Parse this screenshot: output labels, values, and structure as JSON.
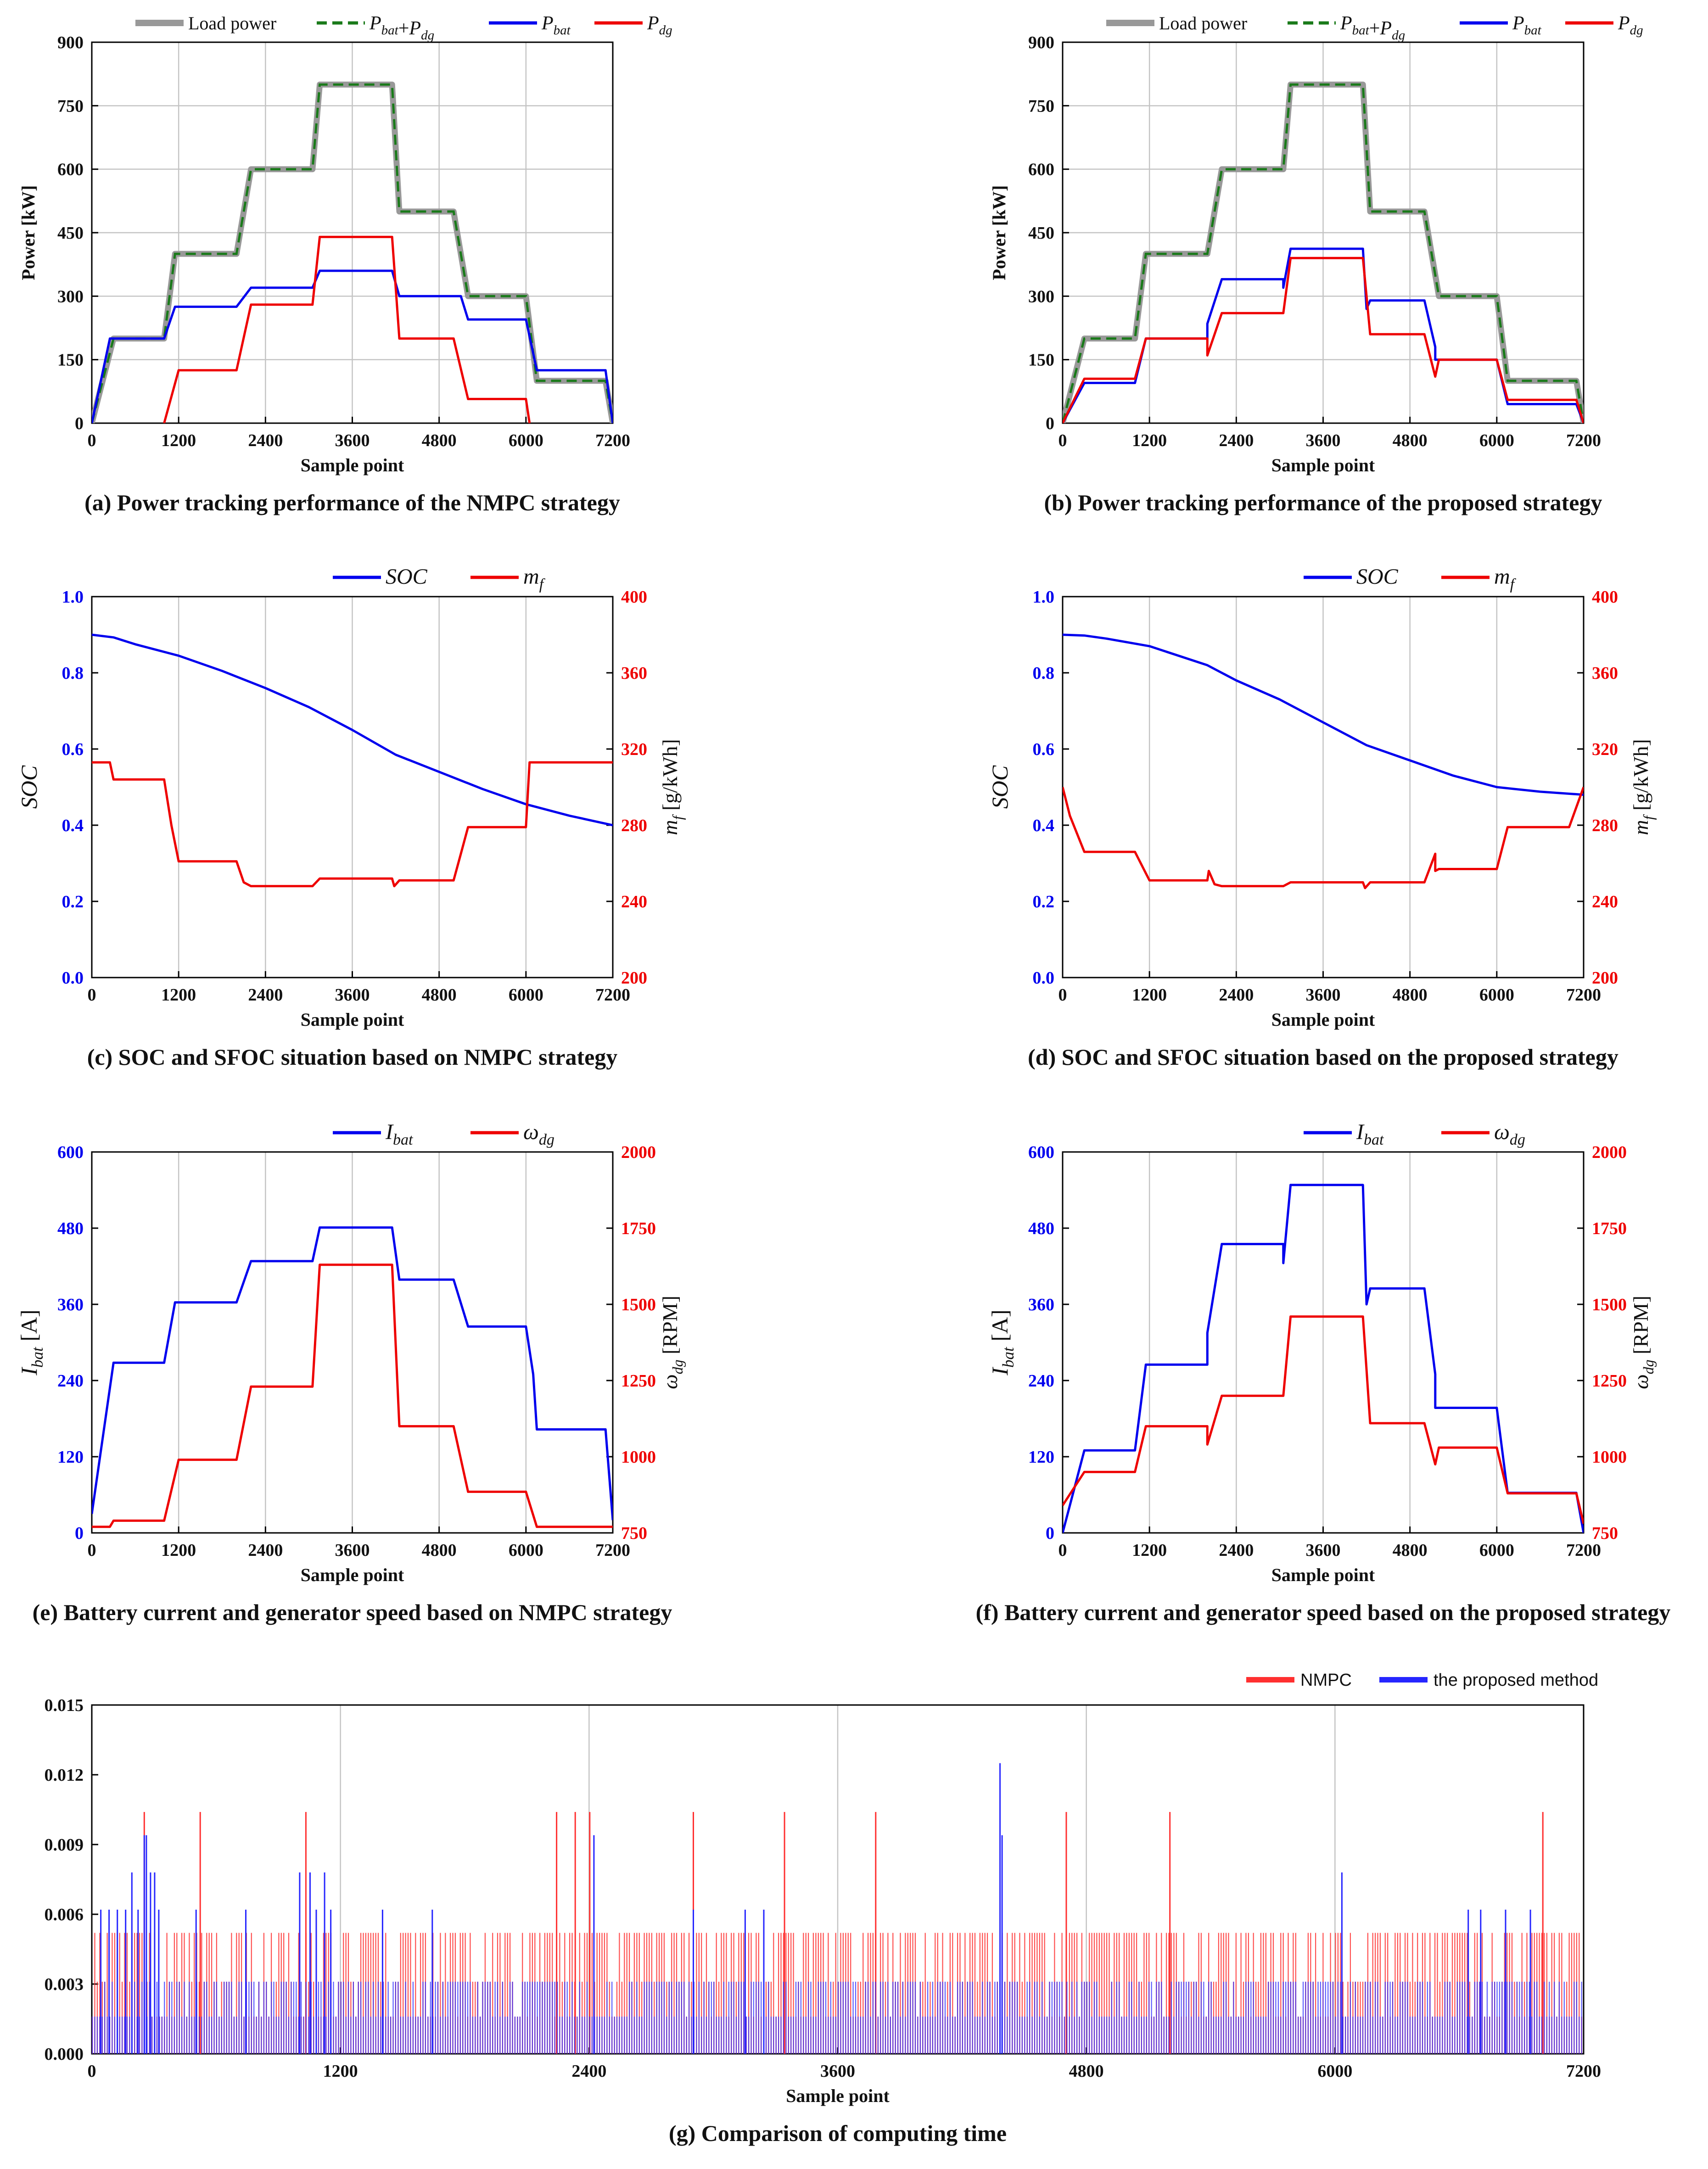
{
  "colors": {
    "load": "#999999",
    "sum": "#1a7a1a",
    "bat": "#0000ee",
    "dg": "#ee0000",
    "nmpc_bar": "#ff3030",
    "proposed_bar": "#2626ff",
    "grid": "#c4c4c4",
    "axis": "#000000"
  },
  "chart_data": [
    {
      "id": "a",
      "type": "line",
      "caption": "(a) Power tracking performance of the NMPC strategy",
      "xlabel": "Sample point",
      "ylabel": "Power [kW]",
      "xlim": [
        0,
        7200
      ],
      "ylim": [
        0,
        900
      ],
      "xticks": [
        "0",
        "1200",
        "2400",
        "3600",
        "4800",
        "6000",
        "7200"
      ],
      "yticks": [
        "0",
        "150",
        "300",
        "450",
        "600",
        "750",
        "900"
      ],
      "legend": [
        "Load power",
        "P_bat+P_dg",
        "P_bat",
        "P_dg"
      ],
      "series": [
        {
          "name": "Load power",
          "color": "load",
          "style": "solid-thick",
          "x": [
            0,
            300,
            1000,
            1150,
            2000,
            2200,
            3050,
            3150,
            4150,
            4250,
            5000,
            5200,
            6000,
            6150,
            7100,
            7200
          ],
          "y": [
            0,
            200,
            200,
            400,
            400,
            600,
            600,
            800,
            800,
            500,
            500,
            300,
            300,
            100,
            100,
            0
          ]
        },
        {
          "name": "P_bat+P_dg",
          "color": "sum",
          "style": "dashed",
          "x": [
            0,
            300,
            1000,
            1150,
            2000,
            2200,
            3050,
            3150,
            4150,
            4250,
            5000,
            5200,
            6000,
            6150,
            7100,
            7200
          ],
          "y": [
            0,
            200,
            200,
            400,
            400,
            600,
            600,
            800,
            800,
            500,
            500,
            300,
            300,
            100,
            100,
            0
          ]
        },
        {
          "name": "P_bat",
          "color": "bat",
          "style": "solid",
          "x": [
            0,
            250,
            1000,
            1150,
            2000,
            2200,
            3050,
            3150,
            4150,
            4250,
            5100,
            5200,
            6000,
            6150,
            7100,
            7200
          ],
          "y": [
            0,
            200,
            200,
            275,
            275,
            320,
            320,
            360,
            360,
            300,
            300,
            245,
            245,
            125,
            125,
            0
          ]
        },
        {
          "name": "P_dg",
          "color": "dg",
          "style": "solid",
          "x": [
            1000,
            1200,
            2000,
            2200,
            3050,
            3150,
            4150,
            4250,
            5000,
            5200,
            6000,
            6050
          ],
          "y": [
            0,
            125,
            125,
            280,
            280,
            440,
            440,
            200,
            200,
            57,
            57,
            0
          ]
        }
      ]
    },
    {
      "id": "b",
      "type": "line",
      "caption": "(b) Power tracking performance of the proposed strategy",
      "xlabel": "Sample point",
      "ylabel": "Power [kW]",
      "xlim": [
        0,
        7200
      ],
      "ylim": [
        0,
        900
      ],
      "xticks": [
        "0",
        "1200",
        "2400",
        "3600",
        "4800",
        "6000",
        "7200"
      ],
      "yticks": [
        "0",
        "150",
        "300",
        "450",
        "600",
        "750",
        "900"
      ],
      "legend": [
        "Load power",
        "P_bat+P_dg",
        "P_bat",
        "P_dg"
      ],
      "series": [
        {
          "name": "Load power",
          "color": "load",
          "style": "solid-thick",
          "x": [
            0,
            300,
            1000,
            1150,
            2000,
            2200,
            3050,
            3150,
            4150,
            4250,
            5000,
            5200,
            6000,
            6150,
            7100,
            7200
          ],
          "y": [
            0,
            200,
            200,
            400,
            400,
            600,
            600,
            800,
            800,
            500,
            500,
            300,
            300,
            100,
            100,
            0
          ]
        },
        {
          "name": "P_bat+P_dg",
          "color": "sum",
          "style": "dashed",
          "x": [
            0,
            300,
            1000,
            1150,
            2000,
            2200,
            3050,
            3150,
            4150,
            4250,
            5000,
            5200,
            6000,
            6150,
            7100,
            7200
          ],
          "y": [
            0,
            200,
            200,
            400,
            400,
            600,
            600,
            800,
            800,
            500,
            500,
            300,
            300,
            100,
            100,
            0
          ]
        },
        {
          "name": "P_bat",
          "color": "bat",
          "style": "solid",
          "x": [
            0,
            300,
            1000,
            1150,
            2000,
            2000,
            2200,
            3050,
            3050,
            3150,
            4150,
            4200,
            4250,
            5000,
            5150,
            5150,
            6000,
            6150,
            7100,
            7200
          ],
          "y": [
            0,
            95,
            95,
            200,
            200,
            235,
            340,
            340,
            320,
            412,
            412,
            270,
            290,
            290,
            180,
            150,
            150,
            45,
            45,
            0
          ]
        },
        {
          "name": "P_dg",
          "color": "dg",
          "style": "solid",
          "x": [
            0,
            300,
            1000,
            1150,
            2000,
            2000,
            2200,
            3050,
            3150,
            4150,
            4250,
            5000,
            5150,
            5200,
            6000,
            6150,
            7100,
            7200
          ],
          "y": [
            0,
            105,
            105,
            200,
            200,
            160,
            260,
            260,
            390,
            390,
            210,
            210,
            110,
            150,
            150,
            55,
            55,
            0
          ]
        }
      ]
    },
    {
      "id": "c",
      "type": "line",
      "caption": "(c) SOC and SFOC situation based on NMPC strategy",
      "xlabel": "Sample point",
      "ylabel_left": "SOC",
      "ylabel_right": "m_f [g/kWh]",
      "xlim": [
        0,
        7200
      ],
      "ylim_left": [
        0.0,
        1.0
      ],
      "ylim_right": [
        200,
        400
      ],
      "xticks": [
        "0",
        "1200",
        "2400",
        "3600",
        "4800",
        "6000",
        "7200"
      ],
      "yticks_left": [
        "0.0",
        "0.2",
        "0.4",
        "0.6",
        "0.8",
        "1.0"
      ],
      "yticks_right": [
        "200",
        "240",
        "280",
        "320",
        "360",
        "400"
      ],
      "legend": [
        "SOC",
        "m_f"
      ],
      "series": [
        {
          "name": "SOC",
          "axis": "left",
          "color": "bat",
          "x": [
            0,
            300,
            600,
            1200,
            1800,
            2400,
            3000,
            3600,
            4200,
            4800,
            5400,
            6000,
            6600,
            7200
          ],
          "y": [
            0.9,
            0.893,
            0.875,
            0.845,
            0.805,
            0.76,
            0.71,
            0.65,
            0.585,
            0.54,
            0.495,
            0.455,
            0.425,
            0.4
          ]
        },
        {
          "name": "m_f",
          "axis": "right",
          "color": "dg",
          "x": [
            0,
            250,
            300,
            1000,
            1100,
            1200,
            2000,
            2100,
            2200,
            3050,
            3150,
            4150,
            4180,
            4250,
            5000,
            5100,
            5200,
            6000,
            6050,
            7200
          ],
          "y": [
            313,
            313,
            304,
            304,
            280,
            261,
            261,
            250,
            248,
            248,
            252,
            252,
            248,
            251,
            251,
            265,
            279,
            279,
            313,
            313
          ]
        }
      ]
    },
    {
      "id": "d",
      "type": "line",
      "caption": "(d) SOC and SFOC situation based on the proposed strategy",
      "xlabel": "Sample point",
      "ylabel_left": "SOC",
      "ylabel_right": "m_f [g/kWh]",
      "xlim": [
        0,
        7200
      ],
      "ylim_left": [
        0.0,
        1.0
      ],
      "ylim_right": [
        200,
        400
      ],
      "xticks": [
        "0",
        "1200",
        "2400",
        "3600",
        "4800",
        "6000",
        "7200"
      ],
      "yticks_left": [
        "0.0",
        "0.2",
        "0.4",
        "0.6",
        "0.8",
        "1.0"
      ],
      "yticks_right": [
        "200",
        "240",
        "280",
        "320",
        "360",
        "400"
      ],
      "legend": [
        "SOC",
        "m_f"
      ],
      "series": [
        {
          "name": "SOC",
          "axis": "left",
          "color": "bat",
          "x": [
            0,
            300,
            600,
            1200,
            2000,
            2400,
            3000,
            3600,
            4200,
            4800,
            5400,
            6000,
            6600,
            7200
          ],
          "y": [
            0.9,
            0.898,
            0.89,
            0.87,
            0.82,
            0.78,
            0.73,
            0.67,
            0.61,
            0.57,
            0.53,
            0.5,
            0.488,
            0.48
          ]
        },
        {
          "name": "m_f",
          "axis": "right",
          "color": "dg",
          "x": [
            0,
            100,
            300,
            1000,
            1200,
            2000,
            2020,
            2100,
            2200,
            3050,
            3150,
            4150,
            4180,
            4250,
            5000,
            5150,
            5150,
            5200,
            6000,
            6150,
            7000,
            7200
          ],
          "y": [
            300,
            285,
            266,
            266,
            251,
            251,
            256,
            249,
            248,
            248,
            250,
            250,
            247,
            250,
            250,
            265,
            256,
            257,
            257,
            279,
            279,
            300
          ]
        }
      ]
    },
    {
      "id": "e",
      "type": "line",
      "caption": "(e) Battery current and generator speed based on NMPC strategy",
      "xlabel": "Sample point",
      "ylabel_left": "I_bat [A]",
      "ylabel_right": "ω_dg [RPM]",
      "xlim": [
        0,
        7200
      ],
      "ylim_left": [
        0,
        600
      ],
      "ylim_right": [
        750,
        2000
      ],
      "xticks": [
        "0",
        "1200",
        "2400",
        "3600",
        "4800",
        "6000",
        "7200"
      ],
      "yticks_left": [
        "0",
        "120",
        "240",
        "360",
        "480",
        "600"
      ],
      "yticks_right": [
        "750",
        "1000",
        "1250",
        "1500",
        "1750",
        "2000"
      ],
      "legend": [
        "I_bat",
        "ω_dg"
      ],
      "series": [
        {
          "name": "I_bat",
          "axis": "left",
          "color": "bat",
          "x": [
            0,
            300,
            1000,
            1150,
            2000,
            2200,
            3050,
            3150,
            4150,
            4250,
            5000,
            5200,
            6000,
            6100,
            6150,
            7100,
            7200
          ],
          "y": [
            30,
            268,
            268,
            363,
            363,
            428,
            428,
            481,
            481,
            399,
            399,
            325,
            325,
            250,
            163,
            163,
            20
          ]
        },
        {
          "name": "ω_dg",
          "axis": "right",
          "color": "dg",
          "x": [
            0,
            250,
            300,
            1000,
            1200,
            2000,
            2200,
            3050,
            3150,
            4150,
            4250,
            5000,
            5200,
            6000,
            6150,
            7200
          ],
          "y": [
            770,
            770,
            790,
            790,
            990,
            990,
            1230,
            1230,
            1630,
            1630,
            1100,
            1100,
            885,
            885,
            770,
            770
          ]
        }
      ]
    },
    {
      "id": "f",
      "type": "line",
      "caption": "(f) Battery current and generator speed based on the proposed strategy",
      "xlabel": "Sample point",
      "ylabel_left": "I_bat [A]",
      "ylabel_right": "ω_dg [RPM]",
      "xlim": [
        0,
        7200
      ],
      "ylim_left": [
        0,
        600
      ],
      "ylim_right": [
        750,
        2000
      ],
      "xticks": [
        "0",
        "1200",
        "2400",
        "3600",
        "4800",
        "6000",
        "7200"
      ],
      "yticks_left": [
        "0",
        "120",
        "240",
        "360",
        "480",
        "600"
      ],
      "yticks_right": [
        "750",
        "1000",
        "1250",
        "1500",
        "1750",
        "2000"
      ],
      "legend": [
        "I_bat",
        "ω_dg"
      ],
      "series": [
        {
          "name": "I_bat",
          "axis": "left",
          "color": "bat",
          "x": [
            0,
            300,
            1000,
            1150,
            2000,
            2000,
            2200,
            3050,
            3050,
            3150,
            4150,
            4200,
            4250,
            5000,
            5150,
            5150,
            6000,
            6150,
            7100,
            7200
          ],
          "y": [
            0,
            130,
            130,
            265,
            265,
            315,
            455,
            455,
            425,
            548,
            548,
            360,
            385,
            385,
            250,
            197,
            197,
            63,
            63,
            0
          ]
        },
        {
          "name": "ω_dg",
          "axis": "right",
          "color": "dg",
          "x": [
            0,
            300,
            1000,
            1150,
            2000,
            2000,
            2200,
            3050,
            3150,
            4150,
            4250,
            5000,
            5150,
            5200,
            6000,
            6150,
            7100,
            7200
          ],
          "y": [
            840,
            950,
            950,
            1100,
            1100,
            1040,
            1200,
            1200,
            1460,
            1460,
            1110,
            1110,
            975,
            1030,
            1030,
            880,
            880,
            780
          ]
        }
      ]
    },
    {
      "id": "g",
      "type": "bar",
      "caption": "(g) Comparison of computing time",
      "xlabel": "Sample point",
      "xlim": [
        0,
        7200
      ],
      "ylim": [
        0,
        0.015
      ],
      "xticks": [
        "0",
        "1200",
        "2400",
        "3600",
        "4800",
        "6000",
        "7200"
      ],
      "yticks": [
        "0.000",
        "0.003",
        "0.006",
        "0.009",
        "0.012",
        "0.015"
      ],
      "legend": [
        "NMPC",
        "the proposed method"
      ],
      "series": [
        {
          "name": "NMPC",
          "color": "nmpc_bar",
          "levels": [
            0.0016,
            0.0031,
            0.0047,
            0.0052
          ],
          "spikes_x": [
            250,
            520,
            1030,
            2240,
            2330,
            2400,
            2900,
            3340,
            3780,
            4700,
            5200,
            7000
          ],
          "spikes_y": [
            0.0104,
            0.0104,
            0.0104,
            0.0104,
            0.0104,
            0.0104,
            0.0104,
            0.0104,
            0.0104,
            0.0104,
            0.0104,
            0.0104
          ]
        },
        {
          "name": "the proposed method",
          "color": "proposed_bar",
          "levels": [
            0.0016,
            0.0031
          ],
          "spikes_x": [
            40,
            80,
            120,
            160,
            190,
            220,
            250,
            260,
            280,
            300,
            320,
            500,
            740,
            1000,
            1050,
            1080,
            1120,
            1150,
            1400,
            1640,
            2420,
            2900,
            3150,
            3240,
            4380,
            4390,
            6030,
            6640,
            6700,
            6820,
            6940
          ],
          "spikes_y": [
            0.0062,
            0.0062,
            0.0062,
            0.0062,
            0.0078,
            0.0062,
            0.0094,
            0.0094,
            0.0078,
            0.0078,
            0.0062,
            0.0062,
            0.0062,
            0.0078,
            0.0078,
            0.0062,
            0.0078,
            0.0062,
            0.0062,
            0.0062,
            0.0094,
            0.0062,
            0.0062,
            0.0062,
            0.0125,
            0.0094,
            0.0078,
            0.0062,
            0.0062,
            0.0062,
            0.0062
          ]
        }
      ]
    }
  ]
}
